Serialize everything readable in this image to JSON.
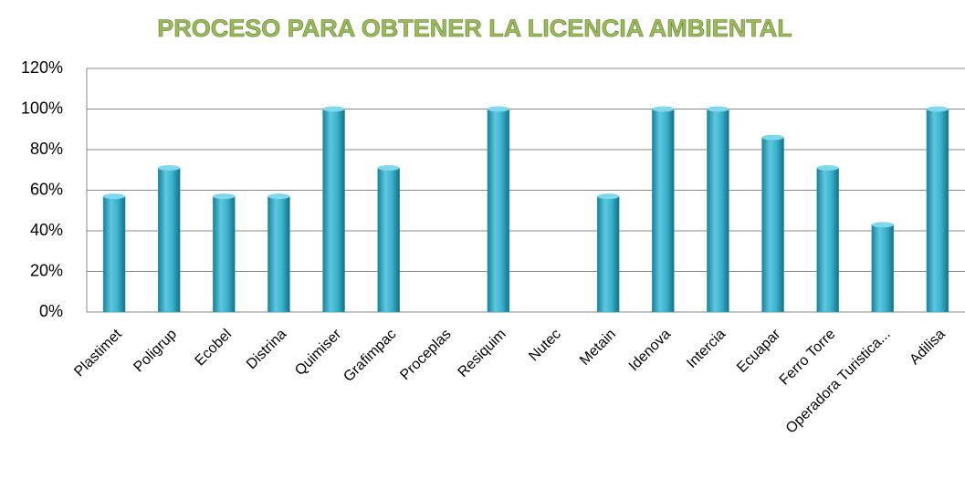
{
  "chart_data": {
    "type": "bar",
    "title": "PROCESO PARA OBTENER LA LICENCIA AMBIENTAL",
    "categories": [
      "Plastimet",
      "Poligrup",
      "Ecobel",
      "Distrina",
      "Quimiser",
      "Grafimpac",
      "Proceplas",
      "Resiquim",
      "Nutec",
      "Metain",
      "Idenova",
      "Intercia",
      "Ecuapar",
      "Ferro Torre",
      "Operadora Turistica...",
      "Adilisa"
    ],
    "values": [
      57,
      71,
      57,
      57,
      100,
      71,
      0,
      100,
      0,
      57,
      100,
      100,
      86,
      71,
      43,
      100
    ],
    "color": "#31a9c4",
    "ylim": [
      0,
      120
    ],
    "yticks": [
      {
        "value": 0,
        "label": "0%"
      },
      {
        "value": 20,
        "label": "20%"
      },
      {
        "value": 40,
        "label": "40%"
      },
      {
        "value": 60,
        "label": "60%"
      },
      {
        "value": 80,
        "label": "80%"
      },
      {
        "value": 100,
        "label": "100%"
      },
      {
        "value": 120,
        "label": "120%"
      }
    ],
    "grid": true
  }
}
